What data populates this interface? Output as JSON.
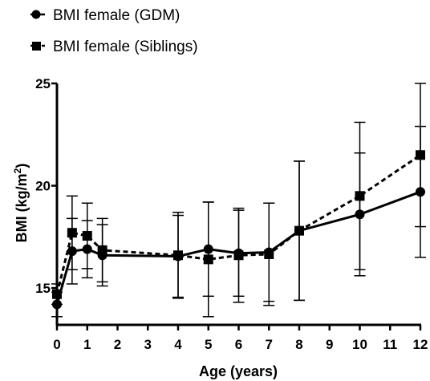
{
  "chart_data": {
    "type": "line",
    "title": "",
    "xlabel": "Age (years)",
    "ylabel": "BMI (kg/m",
    "ylabel_superscript": "2",
    "ylabel_close": ")",
    "xlim": [
      0,
      12
    ],
    "ylim": [
      13.2,
      25
    ],
    "x_ticks": [
      "0",
      "1",
      "2",
      "3",
      "4",
      "5",
      "6",
      "7",
      "8",
      "9",
      "10",
      "11",
      "12"
    ],
    "y_ticks": [
      "15",
      "20",
      "25"
    ],
    "legend_position": "top-left",
    "grid": false,
    "series": [
      {
        "name": "BMI female (GDM)",
        "marker": "circle",
        "line_style": "solid",
        "color": "#000000",
        "x": [
          0,
          0.5,
          1,
          1.5,
          4,
          5,
          6,
          7,
          8,
          10,
          12
        ],
        "y": [
          14.2,
          16.8,
          16.9,
          16.6,
          16.55,
          16.9,
          16.7,
          16.75,
          17.8,
          18.6,
          19.7
        ],
        "error": [
          0.6,
          1.6,
          1.4,
          1.5,
          2.0,
          2.3,
          2.1,
          2.4,
          3.4,
          3.0,
          3.2
        ]
      },
      {
        "name": "BMI female (Siblings)",
        "marker": "square",
        "line_style": "dashed",
        "color": "#000000",
        "x": [
          0,
          0.5,
          1,
          1.5,
          4,
          5,
          6,
          7,
          8,
          10,
          12
        ],
        "y": [
          14.7,
          17.7,
          17.55,
          16.85,
          16.6,
          16.4,
          16.6,
          16.65,
          17.8,
          19.5,
          21.5
        ],
        "error": [
          0.5,
          1.8,
          1.6,
          1.55,
          2.1,
          2.8,
          2.3,
          2.5,
          3.4,
          3.6,
          3.5
        ]
      }
    ]
  }
}
